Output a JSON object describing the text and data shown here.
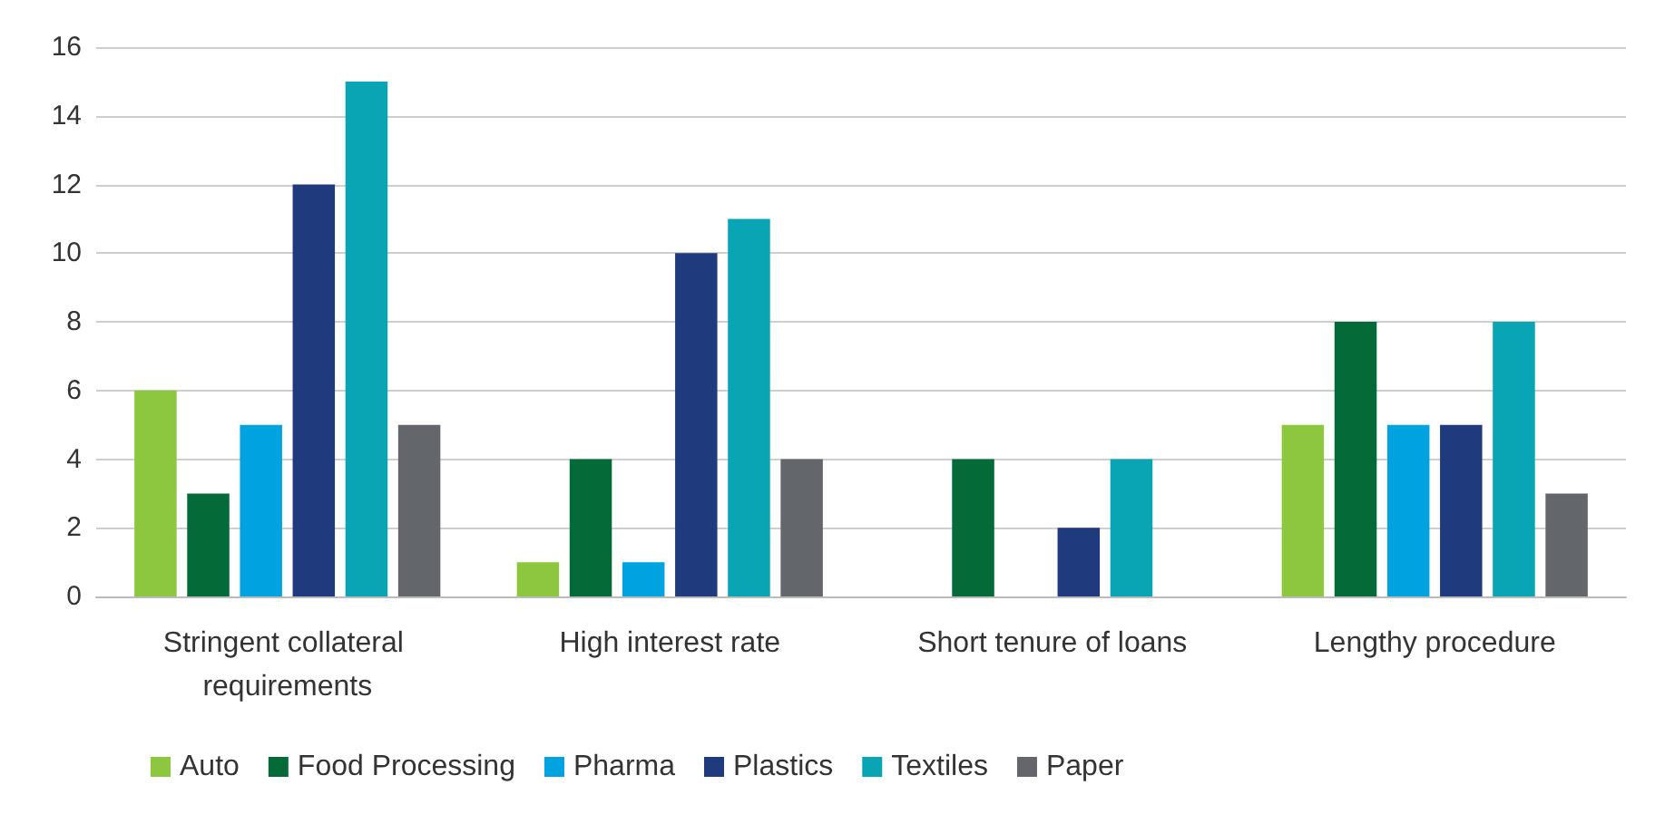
{
  "chart_data": {
    "type": "bar",
    "categories": [
      "Stringent collateral requirements",
      "High interest rate",
      "Short tenure of loans",
      "Lengthy procedure"
    ],
    "series": [
      {
        "name": "Auto",
        "color": "#8dc63f",
        "values": [
          6,
          1,
          0,
          5
        ]
      },
      {
        "name": "Food Processing",
        "color": "#046a38",
        "values": [
          3,
          4,
          4,
          8
        ]
      },
      {
        "name": "Pharma",
        "color": "#00a3e0",
        "values": [
          5,
          1,
          0,
          5
        ]
      },
      {
        "name": "Plastics",
        "color": "#1f3a7d",
        "values": [
          12,
          10,
          2,
          5
        ]
      },
      {
        "name": "Textiles",
        "color": "#0aa5b5",
        "values": [
          15,
          11,
          4,
          8
        ]
      },
      {
        "name": "Paper",
        "color": "#63666a",
        "values": [
          5,
          4,
          0,
          3
        ]
      }
    ],
    "ylim": [
      0,
      16
    ],
    "yticks": [
      0,
      2,
      4,
      6,
      8,
      10,
      12,
      14,
      16
    ],
    "grid": "y",
    "legend": "bottom"
  }
}
